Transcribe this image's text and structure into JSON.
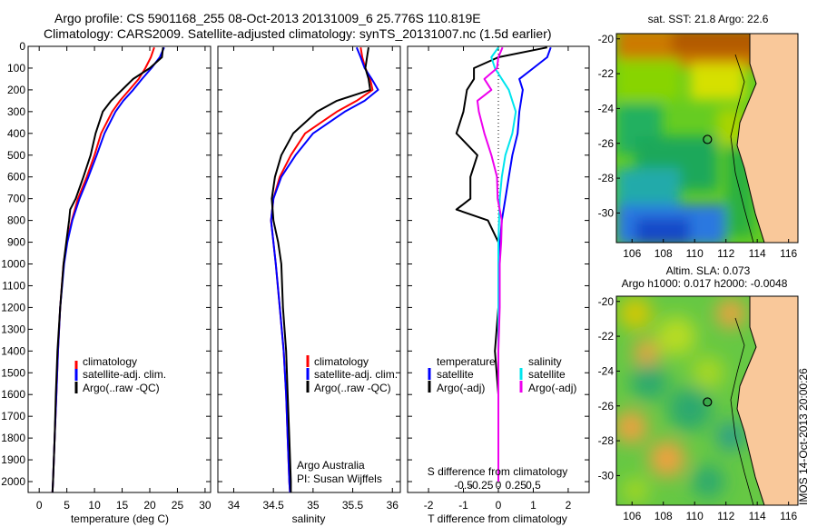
{
  "header": {
    "title_line1": "Argo profile: CS 5901168_255 08-Oct-2013 20131009_6 25.776S 110.819E",
    "title_line2": "Climatology: CARS2009. Satellite-adjusted climatology: synTS_20131007.nc (1.5d earlier)"
  },
  "watermark": "IMOS 14-Oct-2013 20:00:26",
  "colors": {
    "climatology": "#ff0000",
    "satellite": "#0000ff",
    "argo": "#000000",
    "cyan": "#00e5ee",
    "magenta": "#ee00ee"
  },
  "chart_data": [
    {
      "type": "line",
      "id": "temperature",
      "xlabel": "temperature (deg C)",
      "xlim": [
        -2,
        31
      ],
      "ylim": [
        2050,
        0
      ],
      "xticks": [
        0,
        5,
        10,
        15,
        20,
        25,
        30
      ],
      "yticks": [
        0,
        100,
        200,
        300,
        400,
        500,
        600,
        700,
        800,
        900,
        1000,
        1100,
        1200,
        1300,
        1400,
        1500,
        1600,
        1700,
        1800,
        1900,
        2000
      ],
      "legend": [
        "climatology",
        "satellite-adj. clim.",
        "Argo(..raw -QC)"
      ],
      "series": [
        {
          "name": "climatology",
          "color": "#ff0000",
          "depth": [
            5,
            50,
            100,
            150,
            200,
            250,
            300,
            400,
            500,
            600,
            700,
            800,
            900,
            1000,
            1200,
            1400,
            1600,
            1800,
            2000,
            2050
          ],
          "values": [
            20.8,
            20.2,
            19.2,
            18.0,
            16.3,
            14.6,
            13.2,
            11.2,
            10.0,
            8.6,
            7.0,
            5.9,
            5.0,
            4.4,
            3.8,
            3.4,
            3.1,
            2.8,
            2.5,
            2.4
          ]
        },
        {
          "name": "satellite-adj. clim.",
          "color": "#0000ff",
          "depth": [
            5,
            50,
            100,
            150,
            200,
            250,
            300,
            400,
            500,
            600,
            700,
            800,
            900,
            1000,
            1200,
            1400,
            1600,
            1800,
            2000,
            2050
          ],
          "values": [
            22.6,
            21.8,
            20.3,
            18.6,
            17.0,
            15.2,
            13.8,
            11.8,
            10.4,
            8.9,
            7.3,
            6.0,
            5.1,
            4.5,
            3.8,
            3.4,
            3.1,
            2.8,
            2.5,
            2.4
          ]
        },
        {
          "name": "Argo(..raw -QC)",
          "color": "#000000",
          "depth": [
            5,
            50,
            100,
            150,
            200,
            250,
            300,
            400,
            500,
            600,
            700,
            750,
            800,
            900,
            1000,
            1200,
            1400,
            1600,
            1800,
            2000,
            2050
          ],
          "values": [
            22.4,
            22.2,
            20.0,
            17.0,
            15.0,
            13.0,
            11.5,
            10.2,
            9.3,
            8.0,
            6.6,
            5.6,
            5.4,
            4.9,
            4.4,
            3.8,
            3.3,
            3.0,
            2.8,
            2.5,
            2.4
          ]
        }
      ]
    },
    {
      "type": "line",
      "id": "salinity",
      "xlabel": "salinity",
      "xlim": [
        33.8,
        36.1
      ],
      "ylim": [
        2050,
        0
      ],
      "xticks": [
        34,
        34.5,
        35,
        35.5,
        36
      ],
      "legend": [
        "climatology",
        "satellite-adj. clim.",
        "Argo(..raw -QC)"
      ],
      "annotation": [
        "Argo Australia",
        "PI: Susan Wijffels"
      ],
      "series": [
        {
          "name": "climatology",
          "color": "#ff0000",
          "depth": [
            5,
            50,
            100,
            150,
            200,
            250,
            300,
            400,
            500,
            600,
            700,
            800,
            900,
            1000,
            1200,
            1400,
            1600,
            1800,
            2000,
            2050
          ],
          "values": [
            35.6,
            35.62,
            35.66,
            35.72,
            35.75,
            35.55,
            35.3,
            34.9,
            34.72,
            34.58,
            34.5,
            34.47,
            34.5,
            34.53,
            34.58,
            34.63,
            34.66,
            34.68,
            34.7,
            34.71
          ]
        },
        {
          "name": "satellite-adj. clim.",
          "color": "#0000ff",
          "depth": [
            5,
            50,
            100,
            150,
            200,
            250,
            300,
            400,
            500,
            600,
            700,
            800,
            900,
            1000,
            1200,
            1400,
            1600,
            1800,
            2000,
            2050
          ],
          "values": [
            35.55,
            35.6,
            35.65,
            35.74,
            35.82,
            35.65,
            35.4,
            35.0,
            34.78,
            34.6,
            34.5,
            34.47,
            34.5,
            34.53,
            34.58,
            34.63,
            34.66,
            34.68,
            34.7,
            34.71
          ]
        },
        {
          "name": "Argo(..raw -QC)",
          "color": "#000000",
          "depth": [
            5,
            50,
            100,
            150,
            200,
            250,
            300,
            400,
            500,
            600,
            700,
            800,
            900,
            1000,
            1200,
            1400,
            1600,
            1800,
            2000,
            2050
          ],
          "values": [
            35.7,
            35.68,
            35.66,
            35.7,
            35.72,
            35.3,
            35.05,
            34.75,
            34.6,
            34.52,
            34.48,
            34.5,
            34.56,
            34.6,
            34.62,
            34.66,
            34.68,
            34.7,
            34.72,
            34.72
          ]
        }
      ]
    },
    {
      "type": "line",
      "id": "difference",
      "xlabel": "T difference from climatology",
      "xlabel_top": "S difference from climatology",
      "xlim": [
        -2.6,
        2.6
      ],
      "ylim": [
        2050,
        0
      ],
      "xticks": [
        -2,
        -1,
        0,
        1,
        2
      ],
      "xticks_top": [
        -0.5,
        -0.25,
        0,
        0.25,
        0.5
      ],
      "legend_temperature": [
        "temperature",
        "satellite",
        "Argo(-adj)"
      ],
      "legend_salinity": [
        "salinity",
        "satellite",
        "Argo(-adj)"
      ],
      "series": [
        {
          "name": "satellite",
          "group": "temperature",
          "color": "#0000ff",
          "depth": [
            5,
            50,
            100,
            150,
            200,
            300,
            400,
            500,
            600,
            700,
            800,
            900,
            1000,
            1200,
            1500,
            2000
          ],
          "values": [
            1.5,
            1.4,
            1.0,
            0.6,
            0.7,
            0.6,
            0.55,
            0.4,
            0.3,
            0.2,
            0.1,
            0.05,
            0.02,
            0.0,
            0.0,
            0.0
          ]
        },
        {
          "name": "Argo(-adj)",
          "group": "temperature",
          "color": "#000000",
          "depth": [
            5,
            50,
            100,
            150,
            200,
            300,
            400,
            500,
            600,
            700,
            750,
            800,
            900,
            1000,
            1200,
            1400,
            1600,
            1800,
            2000
          ],
          "values": [
            1.4,
            0.0,
            -0.7,
            -0.7,
            -0.9,
            -1.0,
            -1.2,
            -0.6,
            -0.8,
            -0.8,
            -1.2,
            -0.3,
            0.0,
            0.0,
            0.0,
            -0.1,
            0.0,
            0.0,
            0.0
          ]
        },
        {
          "name": "satellite",
          "group": "salinity",
          "color": "#00e5ee",
          "depth": [
            5,
            50,
            100,
            150,
            200,
            300,
            400,
            500,
            600,
            700,
            800,
            900,
            1000,
            1200,
            1500,
            2000
          ],
          "values": [
            0.0,
            -0.1,
            -0.05,
            0.05,
            0.15,
            0.25,
            0.2,
            0.1,
            0.05,
            0.02,
            0.01,
            0.0,
            0.0,
            0.0,
            0.0,
            0.0
          ]
        },
        {
          "name": "Argo(-adj)",
          "group": "salinity",
          "color": "#ee00ee",
          "depth": [
            5,
            50,
            100,
            150,
            200,
            250,
            300,
            400,
            500,
            600,
            700,
            800,
            900,
            1000,
            1200,
            1400,
            1600,
            1800,
            2000
          ],
          "values": [
            0.06,
            0.0,
            -0.02,
            -0.2,
            -0.1,
            -0.3,
            -0.28,
            -0.2,
            -0.1,
            -0.02,
            -0.01,
            0.05,
            0.04,
            0.02,
            0.02,
            0.0,
            0.0,
            0.0,
            0.0
          ]
        }
      ]
    },
    {
      "type": "heatmap",
      "id": "sst-map",
      "title": "sat. SST: 21.8 Argo: 22.6",
      "xticks": [
        106,
        108,
        110,
        112,
        114,
        116
      ],
      "yticks": [
        -20,
        -22,
        -24,
        -26,
        -28,
        -30
      ],
      "xlim": [
        105,
        116.6
      ],
      "ylim": [
        -31.7,
        -19.7
      ],
      "marker": {
        "lon": 110.819,
        "lat": -25.776
      }
    },
    {
      "type": "heatmap",
      "id": "sla-map",
      "title": "Altim. SLA: 0.073",
      "subtitle": "Argo h1000: 0.017 h2000: -0.0048",
      "xticks": [
        106,
        108,
        110,
        112,
        114,
        116
      ],
      "yticks": [
        -20,
        -22,
        -24,
        -26,
        -28,
        -30
      ],
      "xlim": [
        105,
        116.6
      ],
      "ylim": [
        -31.7,
        -19.7
      ],
      "marker": {
        "lon": 110.819,
        "lat": -25.776
      }
    }
  ]
}
